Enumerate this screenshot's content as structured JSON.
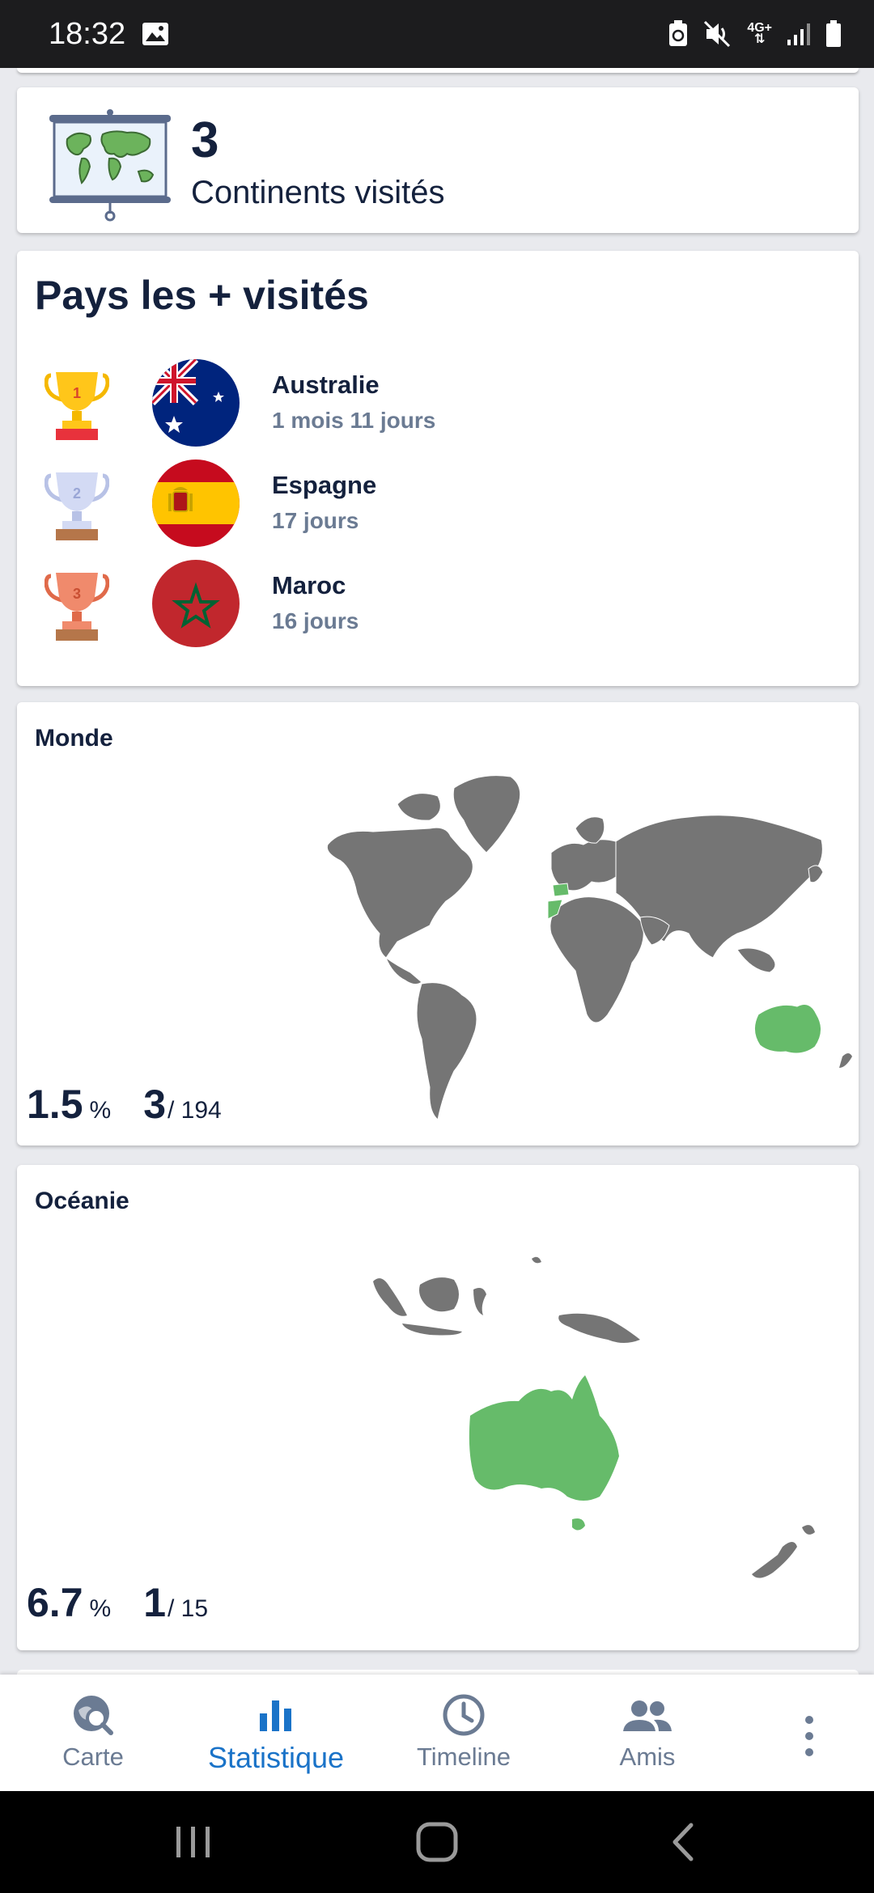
{
  "status_bar": {
    "time": "18:32",
    "network": "4G+"
  },
  "continents": {
    "count": "3",
    "label": "Continents visités"
  },
  "top_countries": {
    "title": "Pays les + visités",
    "items": [
      {
        "rank": "1",
        "name": "Australie",
        "duration": "1 mois 11 jours",
        "flag": "australia-flag",
        "trophy": "gold-trophy"
      },
      {
        "rank": "2",
        "name": "Espagne",
        "duration": "17 jours",
        "flag": "spain-flag",
        "trophy": "silver-trophy"
      },
      {
        "rank": "3",
        "name": "Maroc",
        "duration": "16 jours",
        "flag": "morocco-flag",
        "trophy": "bronze-trophy"
      }
    ]
  },
  "world": {
    "title": "Monde",
    "percent": "1.5",
    "percent_unit": "%",
    "visited": "3",
    "total": "/ 194"
  },
  "oceania": {
    "title": "Océanie",
    "percent": "6.7",
    "percent_unit": "%",
    "visited": "1",
    "total": "/ 15"
  },
  "colors": {
    "visited": "#66bb6a",
    "unvisited": "#757575",
    "accent": "#1a73c8",
    "muted": "#6b7b93",
    "navy": "#14213d"
  },
  "tabs": [
    {
      "label": "Carte",
      "icon": "map-search-icon",
      "active": false
    },
    {
      "label": "Statistique",
      "icon": "bar-chart-icon",
      "active": true
    },
    {
      "label": "Timeline",
      "icon": "clock-icon",
      "active": false
    },
    {
      "label": "Amis",
      "icon": "people-icon",
      "active": false
    }
  ]
}
